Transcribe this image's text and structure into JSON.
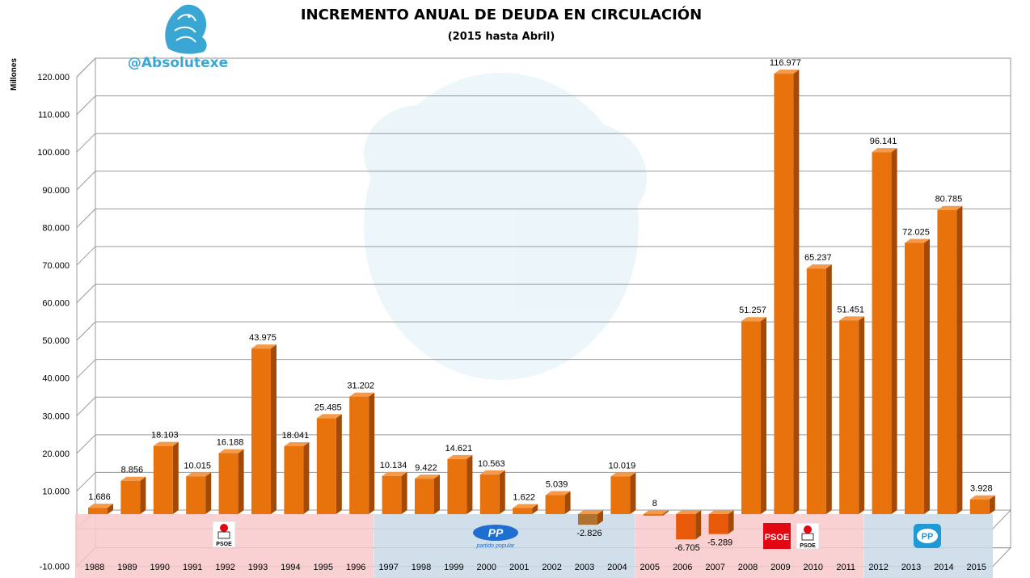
{
  "chart_data": {
    "type": "bar",
    "title": "INCREMENTO ANUAL DE DEUDA EN CIRCULACIÓN",
    "subtitle": "(2015 hasta Abril)",
    "ylabel": "Millones",
    "xlabel": "",
    "ylim": [
      -10000,
      120000
    ],
    "yticks": [
      "-10.000",
      "10.000",
      "20.000",
      "30.000",
      "40.000",
      "50.000",
      "60.000",
      "70.000",
      "80.000",
      "90.000",
      "100.000",
      "110.000",
      "120.000"
    ],
    "ytick_values": [
      -10000,
      10000,
      20000,
      30000,
      40000,
      50000,
      60000,
      70000,
      80000,
      90000,
      100000,
      110000,
      120000
    ],
    "categories": [
      "1988",
      "1989",
      "1990",
      "1991",
      "1992",
      "1993",
      "1994",
      "1995",
      "1996",
      "1997",
      "1998",
      "1999",
      "2000",
      "2001",
      "2002",
      "2003",
      "2004",
      "2005",
      "2006",
      "2007",
      "2008",
      "2009",
      "2010",
      "2011",
      "2012",
      "2013",
      "2014",
      "2015"
    ],
    "values": [
      1686,
      8856,
      18103,
      10015,
      16188,
      43975,
      18041,
      25485,
      31202,
      10134,
      9422,
      14621,
      10563,
      1622,
      5039,
      -2826,
      10019,
      8,
      -6705,
      -5289,
      51257,
      116977,
      65237,
      51451,
      96141,
      72025,
      80785,
      3928
    ],
    "data_labels": [
      "1.686",
      "8.856",
      "18.103",
      "10.015",
      "16.188",
      "43.975",
      "18.041",
      "25.485",
      "31.202",
      "10.134",
      "9.422",
      "14.621",
      "10.563",
      "1.622",
      "5.039",
      "-2.826",
      "10.019",
      "8",
      "-6.705",
      "-5.289",
      "51.257",
      "116.977",
      "65.237",
      "51.451",
      "96.141",
      "72.025",
      "80.785",
      "3.928"
    ],
    "grid": true,
    "bar_colors": {
      "default": "#e8720c",
      "year_2003": "#b0722e",
      "year_2006": "#e85a0a",
      "year_2007": "#e85a0a"
    },
    "government_periods": [
      {
        "party": "PSOE",
        "from": "1988",
        "to": "1996",
        "color": "#f8c9cb",
        "logo_text": "PSOE"
      },
      {
        "party": "PP",
        "from": "1997",
        "to": "2004",
        "color": "#c9d9e8",
        "logo_text": "PP",
        "logo_subtext": "partido popular"
      },
      {
        "party": "PSOE",
        "from": "2005",
        "to": "2011",
        "color": "#f8c9cb",
        "logo_text": "PSOE"
      },
      {
        "party": "PP",
        "from": "2012",
        "to": "2015",
        "color": "#c9d9e8",
        "logo_text": "PP"
      }
    ]
  },
  "branding": {
    "handle": "@Absolutexe",
    "logo_icon": "griffin-icon",
    "accent": "#3aa6d4"
  }
}
